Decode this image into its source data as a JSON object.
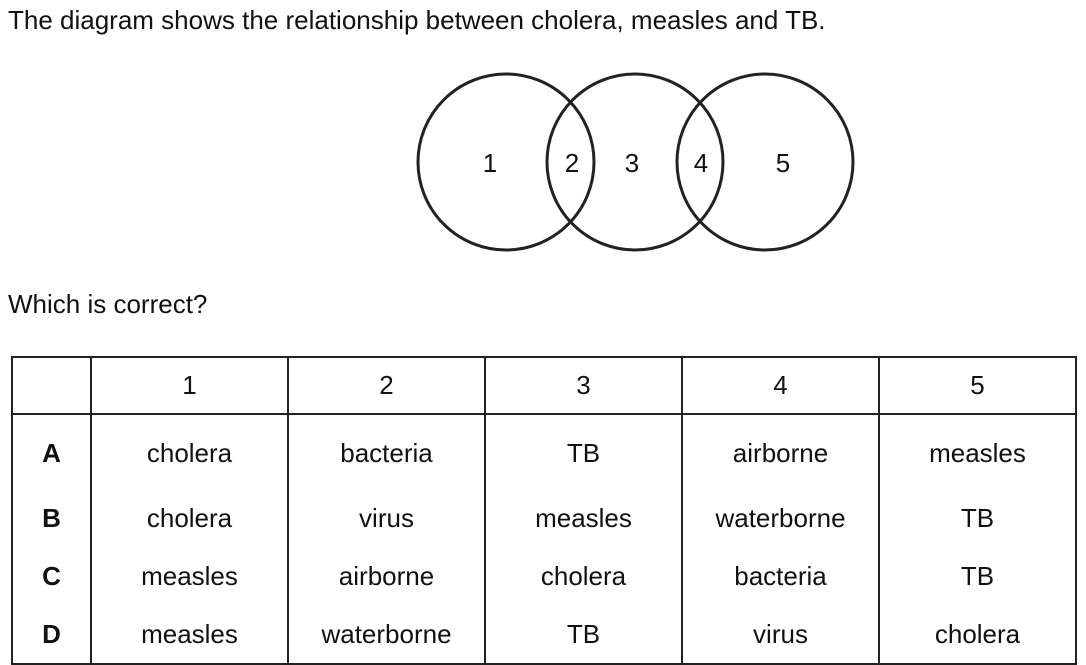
{
  "intro_text": "The diagram shows the relationship between cholera, measles and TB.",
  "venn": {
    "region_labels": [
      "1",
      "2",
      "3",
      "4",
      "5"
    ]
  },
  "question_text": "Which is correct?",
  "table": {
    "header": [
      "",
      "1",
      "2",
      "3",
      "4",
      "5"
    ],
    "rows": [
      {
        "option": "A",
        "cells": [
          "cholera",
          "bacteria",
          "TB",
          "airborne",
          "measles"
        ]
      },
      {
        "option": "B",
        "cells": [
          "cholera",
          "virus",
          "measles",
          "waterborne",
          "TB"
        ]
      },
      {
        "option": "C",
        "cells": [
          "measles",
          "airborne",
          "cholera",
          "bacteria",
          "TB"
        ]
      },
      {
        "option": "D",
        "cells": [
          "measles",
          "waterborne",
          "TB",
          "virus",
          "cholera"
        ]
      }
    ]
  }
}
